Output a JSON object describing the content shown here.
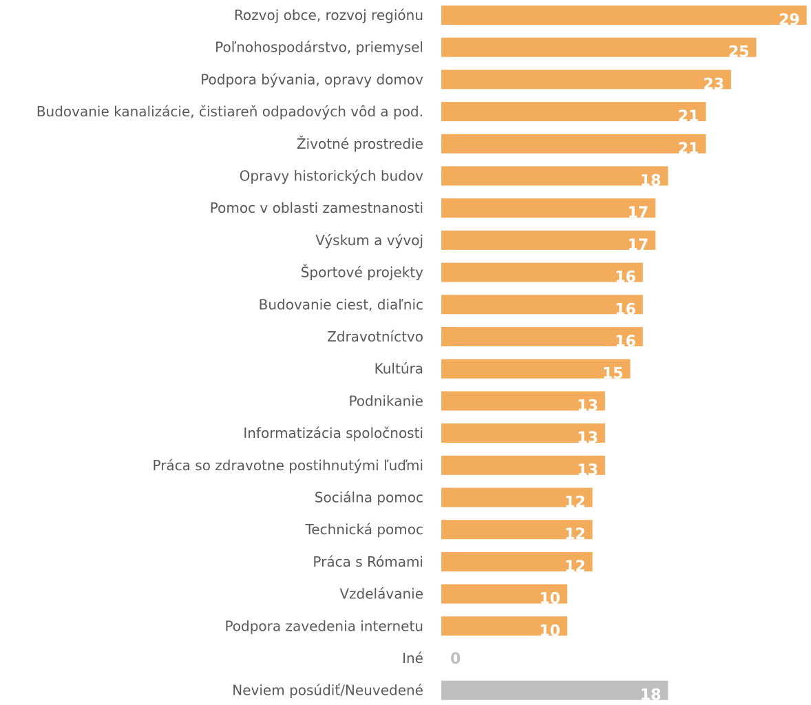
{
  "chart_data": {
    "type": "bar",
    "orientation": "horizontal",
    "categories": [
      "Rozvoj obce, rozvoj regiónu",
      "Poľnohospodárstvo, priemysel",
      "Podpora bývania, opravy domov",
      "Budovanie kanalizácie, čistiareň odpadových vôd a pod.",
      "Životné prostredie",
      "Opravy historických budov",
      "Pomoc v oblasti zamestnanosti",
      "Výskum a vývoj",
      "Športové projekty",
      "Budovanie ciest, diaľnic",
      "Zdravotníctvo",
      "Kultúra",
      "Podnikanie",
      "Informatizácia spoločnosti",
      "Práca so zdravotne postihnutými ľuďmi",
      "Sociálna pomoc",
      "Technická pomoc",
      "Práca s Rómami",
      "Vzdelávanie",
      "Podpora zavedenia internetu",
      "Iné",
      "Neviem posúdiť/Neuvedené"
    ],
    "values": [
      29,
      25,
      23,
      21,
      21,
      18,
      17,
      17,
      16,
      16,
      16,
      15,
      13,
      13,
      13,
      12,
      12,
      12,
      10,
      10,
      0,
      18
    ],
    "value_labels": [
      "29",
      "25",
      "23",
      "21",
      "21",
      "18",
      "17",
      "17",
      "16",
      "16",
      "16",
      "15",
      "13",
      "13",
      "13",
      "12",
      "12",
      "12",
      "10",
      "10",
      "0",
      "18"
    ],
    "bar_colors": [
      "#F2AC5B",
      "#F2AC5B",
      "#F2AC5B",
      "#F2AC5B",
      "#F2AC5B",
      "#F2AC5B",
      "#F2AC5B",
      "#F2AC5B",
      "#F2AC5B",
      "#F2AC5B",
      "#F2AC5B",
      "#F2AC5B",
      "#F2AC5B",
      "#F2AC5B",
      "#F2AC5B",
      "#F2AC5B",
      "#F2AC5B",
      "#F2AC5B",
      "#F2AC5B",
      "#F2AC5B",
      "#F2AC5B",
      "#BFBFBF"
    ],
    "label_color_inside": "#FFFFFF",
    "label_color_zero": "#BFBFBF",
    "category_label_color": "#595959",
    "xlim": [
      0,
      31
    ],
    "grid": false,
    "legend": "none",
    "title": "",
    "xlabel": "",
    "ylabel": ""
  }
}
